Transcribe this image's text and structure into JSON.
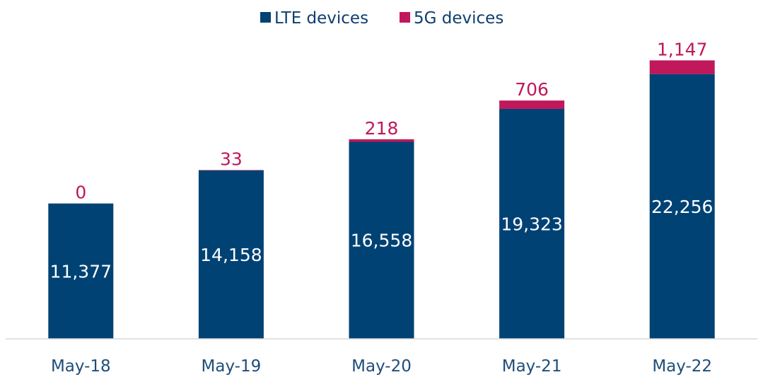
{
  "chart_data": {
    "type": "bar",
    "stacked": true,
    "categories": [
      "May-18",
      "May-19",
      "May-20",
      "May-21",
      "May-22"
    ],
    "series": [
      {
        "name": "LTE devices",
        "color": "#004274",
        "values": [
          11377,
          14158,
          16558,
          19323,
          22256
        ]
      },
      {
        "name": "5G devices",
        "color": "#c0185a",
        "values": [
          0,
          33,
          218,
          706,
          1147
        ]
      }
    ],
    "labels": {
      "lte": [
        "11,377",
        "14,158",
        "16,558",
        "19,323",
        "22,256"
      ],
      "fiveg": [
        "0",
        "33",
        "218",
        "706",
        "1,147"
      ]
    },
    "legend_position": "top-center",
    "grid": false,
    "ylim": [
      0,
      25000
    ]
  }
}
